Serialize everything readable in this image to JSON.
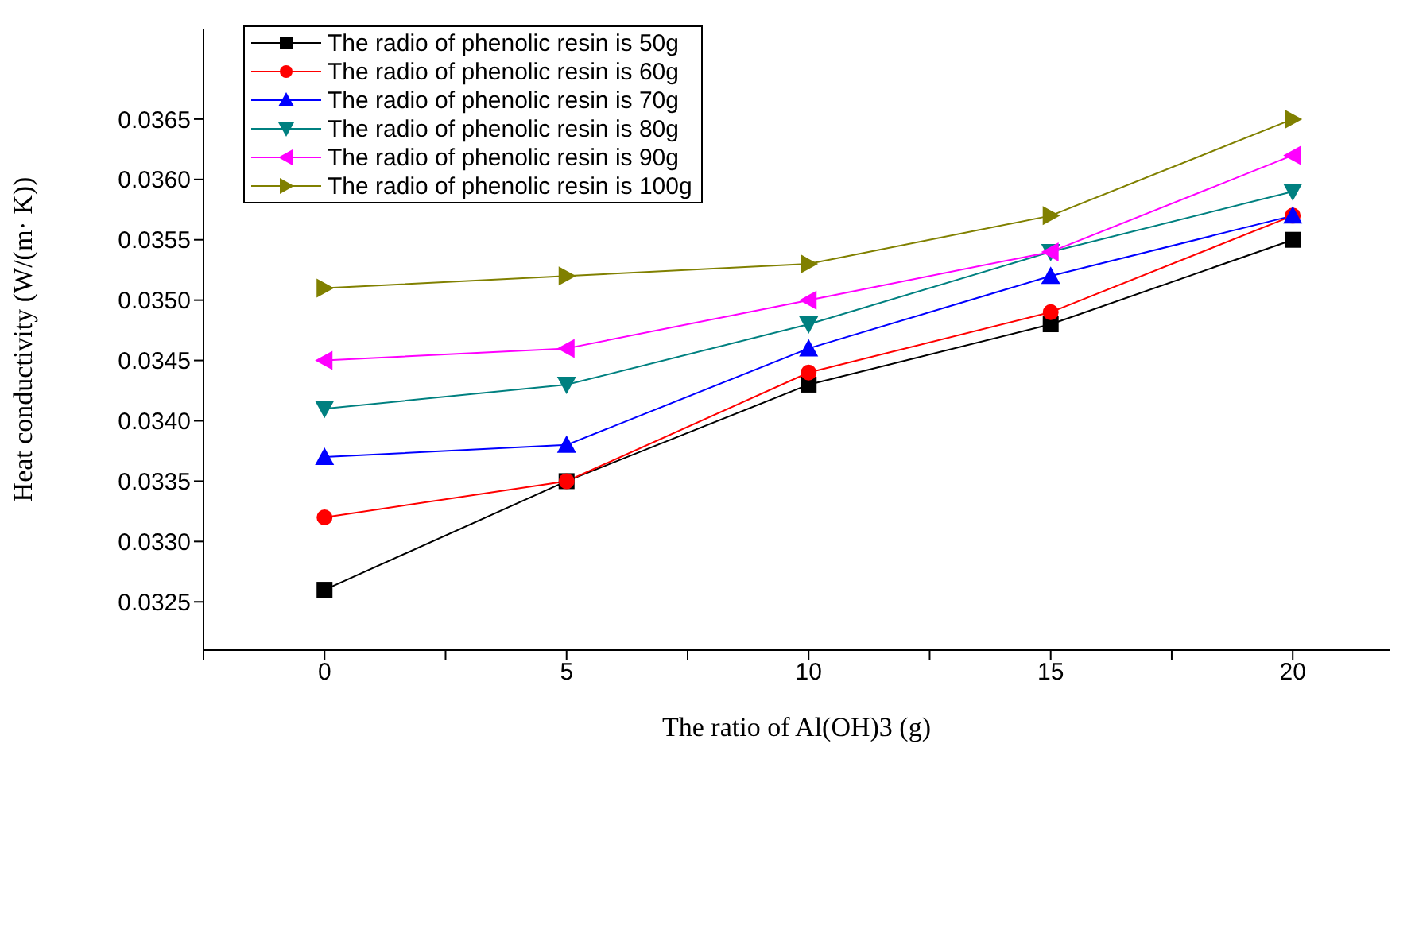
{
  "chart_data": {
    "type": "line",
    "xlabel": "The ratio of Al(OH)3 (g)",
    "ylabel": "Heat conductivity (W/(m· K))",
    "x": [
      0,
      5,
      10,
      15,
      20
    ],
    "xlim": [
      -2.5,
      22
    ],
    "xticks": [
      {
        "value": -2.5,
        "label": null
      },
      0,
      {
        "value": 2.5,
        "label": null
      },
      5,
      {
        "value": 7.5,
        "label": null
      },
      10,
      {
        "value": 12.5,
        "label": null
      },
      15,
      {
        "value": 17.5,
        "label": null
      },
      20
    ],
    "ylim": [
      0.0321,
      0.03725
    ],
    "yticks": [
      0.0325,
      {
        "value": 0.033,
        "label": "0.0330"
      },
      0.0335,
      {
        "value": 0.034,
        "label": "0.0340"
      },
      0.0345,
      {
        "value": 0.035,
        "label": "0.0350"
      },
      0.0355,
      {
        "value": 0.036,
        "label": "0.0360"
      },
      0.0365
    ],
    "grid": false,
    "legend": "top left",
    "line_style": "solid",
    "series": [
      {
        "name": "The radio of phenolic resin is 50g",
        "color": "#000000",
        "marker": "square",
        "values": [
          0.0326,
          0.0335,
          0.0343,
          0.0348,
          0.0355
        ]
      },
      {
        "name": "The radio of phenolic resin is 60g",
        "color": "#ff0000",
        "marker": "circle",
        "values": [
          0.0332,
          0.0335,
          0.0344,
          0.0349,
          0.0357
        ]
      },
      {
        "name": "The radio of phenolic resin is 70g",
        "color": "#0000ff",
        "marker": "triangle",
        "values": [
          0.0337,
          0.0338,
          0.0346,
          0.0352,
          0.0357
        ]
      },
      {
        "name": "The radio of phenolic resin is 80g",
        "color": "#008080",
        "marker": "triangle-down",
        "values": [
          0.0341,
          0.0343,
          0.0348,
          0.0354,
          0.0359
        ]
      },
      {
        "name": "The radio of phenolic resin is 90g",
        "color": "#ff00ff",
        "marker": "triangle-left",
        "values": [
          0.0345,
          0.0346,
          0.035,
          0.0354,
          0.0362
        ]
      },
      {
        "name": "The radio of phenolic resin is 100g",
        "color": "#808000",
        "marker": "triangle-right",
        "values": [
          0.0351,
          0.0352,
          0.0353,
          0.0357,
          0.0365
        ]
      }
    ]
  }
}
